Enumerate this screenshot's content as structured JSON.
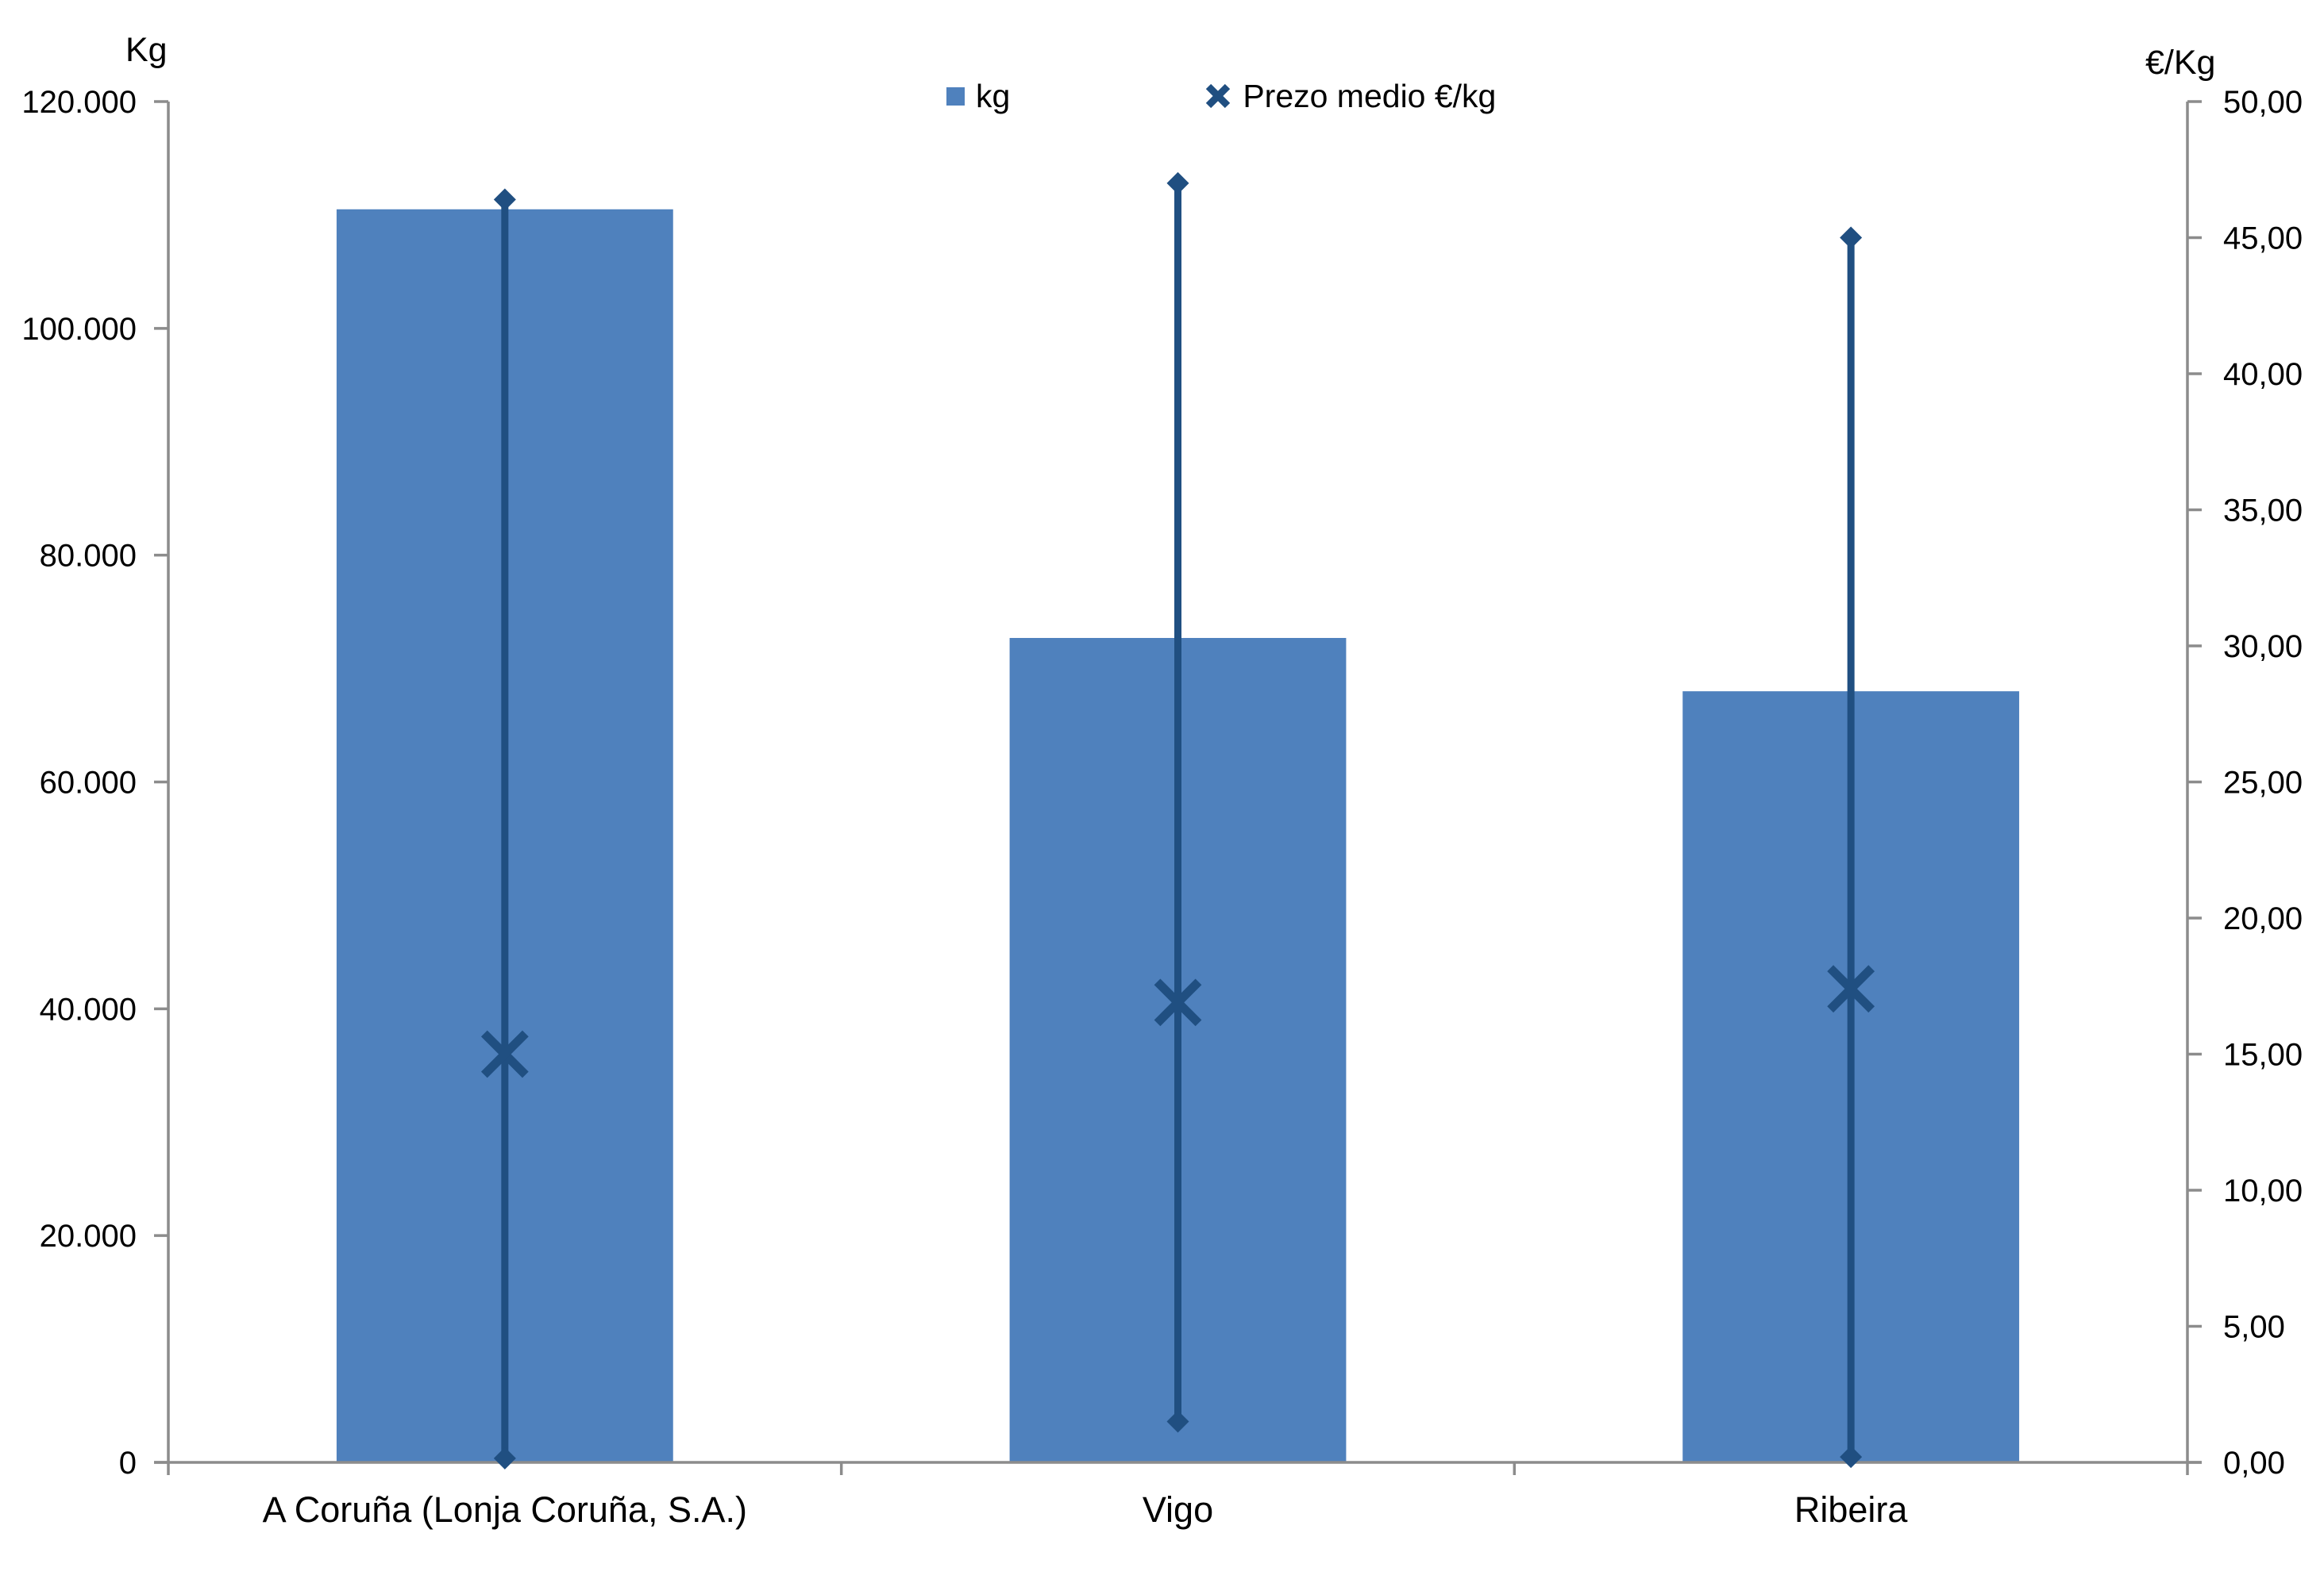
{
  "chart_data": {
    "type": "bar",
    "subtype": "combo-bar-with-highlow-price-lines",
    "categories": [
      "A Coruña (Lonja Coruña, S.A.)",
      "Vigo",
      "Ribeira"
    ],
    "series": [
      {
        "name": "kg",
        "type": "bar",
        "axis": "left",
        "values": [
          110500,
          72700,
          68000
        ],
        "color": "#4F81BD"
      },
      {
        "name": "Prezo medio €/kg",
        "type": "highlow-line-with-x-marker",
        "axis": "right",
        "mean": [
          15.0,
          16.9,
          17.4
        ],
        "high": [
          46.4,
          47.0,
          45.0
        ],
        "low": [
          0.15,
          1.5,
          0.2
        ],
        "color": "#204F81"
      }
    ],
    "left_axis": {
      "title": "Kg",
      "min": 0,
      "max": 120000,
      "step": 20000,
      "tick_labels": [
        "120.000",
        "100.000",
        "80.000",
        "60.000",
        "40.000",
        "20.000",
        "0"
      ]
    },
    "right_axis": {
      "title": "€/Kg",
      "min": 0,
      "max": 50,
      "step": 5,
      "tick_labels": [
        "50,00",
        "45,00",
        "40,00",
        "35,00",
        "30,00",
        "25,00",
        "20,00",
        "15,00",
        "10,00",
        "5,00",
        "0,00"
      ]
    },
    "legend": [
      {
        "label": "kg",
        "marker": "square"
      },
      {
        "label": "Prezo medio €/kg",
        "marker": "x"
      }
    ],
    "grid": "off",
    "legend_position": "top-center",
    "axis_color": "#8C8C8C",
    "text_color": "#000000",
    "background": "#FFFFFF"
  }
}
